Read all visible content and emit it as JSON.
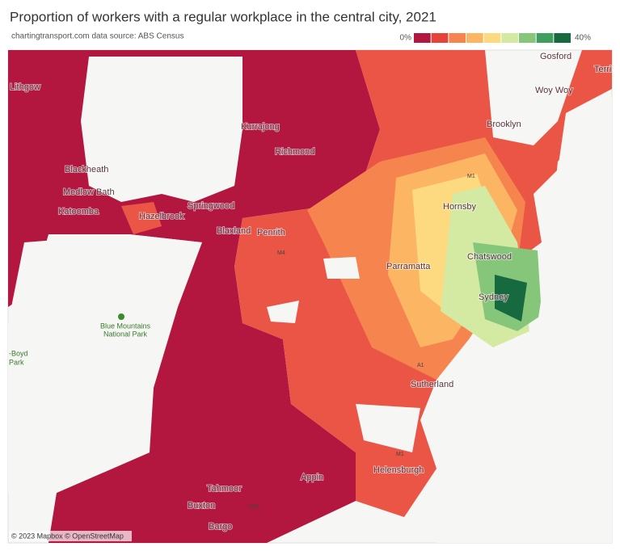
{
  "header": {
    "title": "Proportion of workers with a regular workplace in the central city, 2021",
    "subtitle": "chartingtransport.com  data source: ABS Census"
  },
  "legend": {
    "labels": [
      "0%",
      "40%"
    ],
    "colors": [
      "#b3173f",
      "#e6413a",
      "#f6844f",
      "#fbb563",
      "#fdd980",
      "#d4eaa3",
      "#86c67a",
      "#3f9d5e",
      "#176a3f"
    ]
  },
  "places": [
    "Lithgow",
    "Kurrajong",
    "Richmond",
    "Blackheath",
    "Medlow Bath",
    "Katoomba",
    "Hazelbrook",
    "Springwood",
    "Blaxland",
    "Penrith",
    "Hornsby",
    "Parramatta",
    "Chatswood",
    "Sydney",
    "Sutherland",
    "Helensburgh",
    "Appin",
    "Tahmoor",
    "Buxton",
    "Bargo",
    "Brooklyn",
    "Gosford",
    "Woy Woy",
    "Terri",
    "Blue Mountains",
    "National Park",
    "-Boyd",
    "Park"
  ],
  "roads": [
    "M4",
    "M1",
    "M1",
    "M31",
    "A1"
  ],
  "attribution": "© 2023 Mapbox © OpenStreetMap"
}
